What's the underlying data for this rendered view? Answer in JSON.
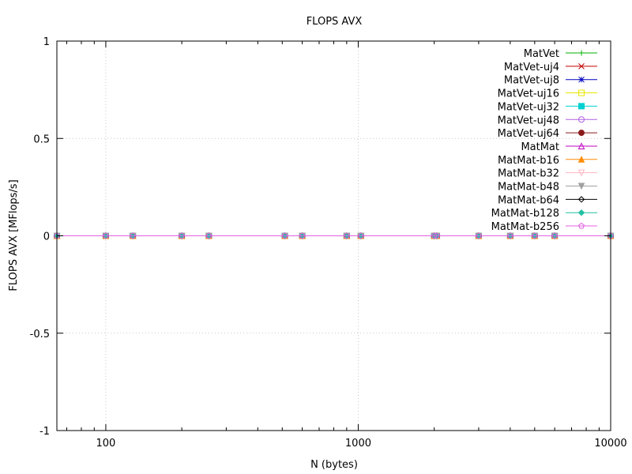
{
  "chart_data": {
    "type": "line",
    "title": "FLOPS AVX",
    "xlabel": "N (bytes)",
    "ylabel": "FLOPS AVX [MFlops/s]",
    "x_scale": "log",
    "xlim": [
      64,
      10000
    ],
    "ylim": [
      -1,
      1
    ],
    "grid": true,
    "legend_position": "top-right",
    "x_tick_labels": [
      {
        "value": 100,
        "label": "100"
      },
      {
        "value": 1000,
        "label": "1000"
      },
      {
        "value": 10000,
        "label": "10000"
      }
    ],
    "y_tick_labels": [
      {
        "value": 1,
        "label": "1"
      },
      {
        "value": 0.5,
        "label": "0.5"
      },
      {
        "value": 0,
        "label": "0"
      },
      {
        "value": -0.5,
        "label": "-0.5"
      },
      {
        "value": -1,
        "label": "-1"
      }
    ],
    "x": [
      64,
      100,
      128,
      200,
      256,
      512,
      600,
      900,
      1024,
      2000,
      2048,
      3000,
      4000,
      5000,
      6000,
      10000
    ],
    "series": [
      {
        "name": "MatVet",
        "color": "#00b000",
        "marker": "plus",
        "values": [
          0,
          0,
          0,
          0,
          0,
          0,
          0,
          0,
          0,
          0,
          0,
          0,
          0,
          0,
          0,
          0
        ]
      },
      {
        "name": "MatVet-uj4",
        "color": "#c00000",
        "marker": "cross",
        "values": [
          0,
          0,
          0,
          0,
          0,
          0,
          0,
          0,
          0,
          0,
          0,
          0,
          0,
          0,
          0,
          0
        ]
      },
      {
        "name": "MatVet-uj8",
        "color": "#0000c0",
        "marker": "star",
        "values": [
          0,
          0,
          0,
          0,
          0,
          0,
          0,
          0,
          0,
          0,
          0,
          0,
          0,
          0,
          0,
          0
        ]
      },
      {
        "name": "MatVet-uj16",
        "color": "#e6e600",
        "marker": "square-open",
        "values": [
          0,
          0,
          0,
          0,
          0,
          0,
          0,
          0,
          0,
          0,
          0,
          0,
          0,
          0,
          0,
          0
        ]
      },
      {
        "name": "MatVet-uj32",
        "color": "#00d0d0",
        "marker": "square-filled",
        "values": [
          0,
          0,
          0,
          0,
          0,
          0,
          0,
          0,
          0,
          0,
          0,
          0,
          0,
          0,
          0,
          0
        ]
      },
      {
        "name": "MatVet-uj48",
        "color": "#b060e0",
        "marker": "circle-open",
        "values": [
          0,
          0,
          0,
          0,
          0,
          0,
          0,
          0,
          0,
          0,
          0,
          0,
          0,
          0,
          0,
          0
        ]
      },
      {
        "name": "MatVet-uj64",
        "color": "#8b1a1a",
        "marker": "circle-filled",
        "values": [
          0,
          0,
          0,
          0,
          0,
          0,
          0,
          0,
          0,
          0,
          0,
          0,
          0,
          0,
          0,
          0
        ]
      },
      {
        "name": "MatMat",
        "color": "#c000c0",
        "marker": "triangle-open",
        "values": [
          0,
          0,
          0,
          0,
          0,
          0,
          0,
          0,
          0,
          0,
          0,
          0,
          0,
          0,
          0,
          0
        ]
      },
      {
        "name": "MatMat-b16",
        "color": "#ff8c00",
        "marker": "triangle-filled",
        "values": [
          0,
          0,
          0,
          0,
          0,
          0,
          0,
          0,
          0,
          0,
          0,
          0,
          0,
          0,
          0,
          0
        ]
      },
      {
        "name": "MatMat-b32",
        "color": "#ffb6c1",
        "marker": "triangle-down-open",
        "values": [
          0,
          0,
          0,
          0,
          0,
          0,
          0,
          0,
          0,
          0,
          0,
          0,
          0,
          0,
          0,
          0
        ]
      },
      {
        "name": "MatMat-b48",
        "color": "#a0a0a0",
        "marker": "triangle-down-filled",
        "values": [
          0,
          0,
          0,
          0,
          0,
          0,
          0,
          0,
          0,
          0,
          0,
          0,
          0,
          0,
          0,
          0
        ]
      },
      {
        "name": "MatMat-b64",
        "color": "#000000",
        "marker": "diamond-open",
        "values": [
          0,
          0,
          0,
          0,
          0,
          0,
          0,
          0,
          0,
          0,
          0,
          0,
          0,
          0,
          0,
          0
        ]
      },
      {
        "name": "MatMat-b128",
        "color": "#20c0a0",
        "marker": "diamond-filled",
        "values": [
          0,
          0,
          0,
          0,
          0,
          0,
          0,
          0,
          0,
          0,
          0,
          0,
          0,
          0,
          0,
          0
        ]
      },
      {
        "name": "MatMat-b256",
        "color": "#e060e0",
        "marker": "pentagon-open",
        "values": [
          0,
          0,
          0,
          0,
          0,
          0,
          0,
          0,
          0,
          0,
          0,
          0,
          0,
          0,
          0,
          0
        ]
      }
    ]
  }
}
